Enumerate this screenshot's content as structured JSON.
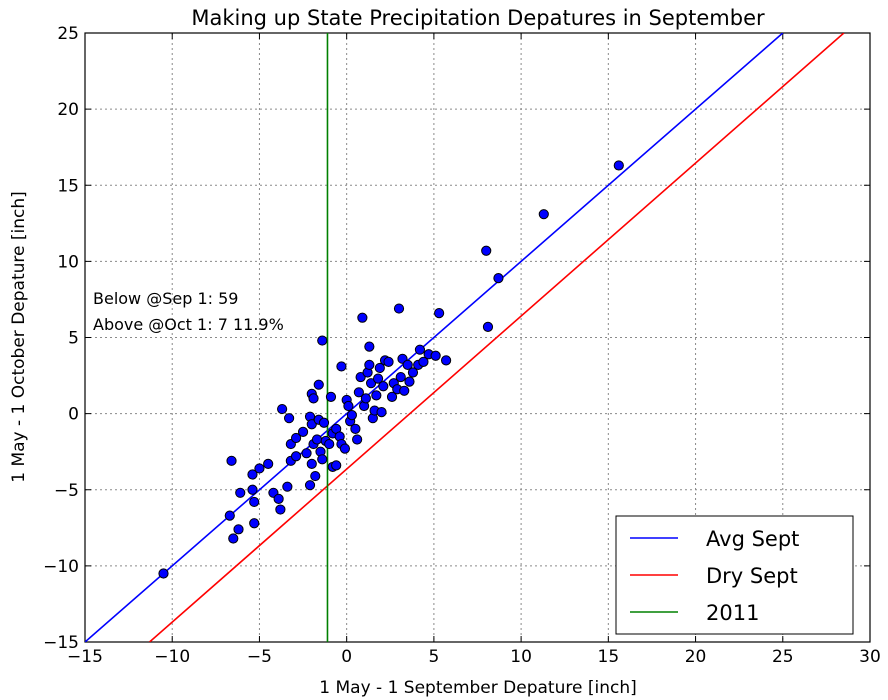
{
  "chart_data": {
    "type": "scatter",
    "title": "Making up State Precipitation Depatures in September",
    "xlabel": "1 May - 1 September Depature [inch]",
    "ylabel": "1 May - 1 October Depature [inch]",
    "xlim": [
      -15,
      30
    ],
    "ylim": [
      -15,
      25
    ],
    "xticks": [
      -15,
      -10,
      -5,
      0,
      5,
      10,
      15,
      20,
      25,
      30
    ],
    "yticks": [
      -15,
      -10,
      -5,
      0,
      5,
      10,
      15,
      20,
      25
    ],
    "x_tick_labels": [
      "−15",
      "−10",
      "−5",
      "0",
      "5",
      "10",
      "15",
      "20",
      "25",
      "30"
    ],
    "y_tick_labels": [
      "−15",
      "−10",
      "−5",
      "0",
      "5",
      "10",
      "15",
      "20",
      "25"
    ],
    "grid": true,
    "legend_position": "bottom-right",
    "annotations": [
      "Below @Sep 1: 59",
      "Above @Oct 1: 7 11.9%"
    ],
    "lines": [
      {
        "name": "Avg Sept",
        "color": "#0000ff",
        "kind": "line",
        "x": [
          -15,
          25
        ],
        "y": [
          -15,
          25
        ]
      },
      {
        "name": "Dry Sept",
        "color": "#ff0000",
        "kind": "line",
        "x": [
          -11.3,
          28.5
        ],
        "y": [
          -15,
          25
        ]
      },
      {
        "name": "2011",
        "color": "#008000",
        "kind": "vline",
        "x": -1.1
      }
    ],
    "points_color": "#0000ff",
    "points": [
      [
        -10.5,
        -10.5
      ],
      [
        -6.5,
        -8.2
      ],
      [
        -6.7,
        -6.7
      ],
      [
        -6.2,
        -7.6
      ],
      [
        -6.6,
        -3.1
      ],
      [
        -6.1,
        -5.2
      ],
      [
        -5.4,
        -5.0
      ],
      [
        -5.3,
        -5.8
      ],
      [
        -5.0,
        -3.6
      ],
      [
        -5.4,
        -4.0
      ],
      [
        -5.3,
        -7.2
      ],
      [
        -4.5,
        -3.3
      ],
      [
        -4.2,
        -5.2
      ],
      [
        -3.9,
        -5.6
      ],
      [
        -3.8,
        -6.3
      ],
      [
        -3.4,
        -4.8
      ],
      [
        -3.2,
        -3.1
      ],
      [
        -2.9,
        -2.8
      ],
      [
        -3.7,
        0.3
      ],
      [
        -3.3,
        -0.3
      ],
      [
        -3.2,
        -2.0
      ],
      [
        -2.9,
        -1.6
      ],
      [
        -2.5,
        -1.2
      ],
      [
        -2.3,
        -2.6
      ],
      [
        -2.1,
        -0.2
      ],
      [
        -2.0,
        -0.7
      ],
      [
        -2.0,
        -3.3
      ],
      [
        -2.1,
        -4.7
      ],
      [
        -1.8,
        -4.1
      ],
      [
        -1.6,
        -0.4
      ],
      [
        -1.9,
        -2.0
      ],
      [
        -1.7,
        -1.7
      ],
      [
        -1.5,
        -2.5
      ],
      [
        -1.4,
        -3.0
      ],
      [
        -1.3,
        -0.6
      ],
      [
        -1.2,
        -1.8
      ],
      [
        -1.0,
        -2.0
      ],
      [
        -0.8,
        -1.3
      ],
      [
        -2.0,
        1.3
      ],
      [
        -1.9,
        1.0
      ],
      [
        -1.6,
        1.9
      ],
      [
        -1.4,
        4.8
      ],
      [
        -0.9,
        1.1
      ],
      [
        -0.8,
        -3.5
      ],
      [
        -0.6,
        -3.4
      ],
      [
        -0.6,
        -1.0
      ],
      [
        -0.4,
        -1.5
      ],
      [
        -0.3,
        3.1
      ],
      [
        -0.3,
        -2.0
      ],
      [
        -0.1,
        -2.3
      ],
      [
        0.0,
        0.9
      ],
      [
        0.1,
        0.5
      ],
      [
        0.2,
        -0.5
      ],
      [
        0.3,
        -0.1
      ],
      [
        0.5,
        -1.0
      ],
      [
        0.6,
        -1.7
      ],
      [
        0.7,
        1.4
      ],
      [
        0.8,
        2.4
      ],
      [
        0.9,
        6.3
      ],
      [
        1.0,
        0.5
      ],
      [
        1.1,
        1.0
      ],
      [
        1.2,
        2.7
      ],
      [
        1.3,
        4.4
      ],
      [
        1.3,
        3.2
      ],
      [
        1.4,
        2.0
      ],
      [
        1.5,
        -0.3
      ],
      [
        1.6,
        0.2
      ],
      [
        1.7,
        1.2
      ],
      [
        1.8,
        2.3
      ],
      [
        1.9,
        3.0
      ],
      [
        2.0,
        0.1
      ],
      [
        2.1,
        1.8
      ],
      [
        2.2,
        3.5
      ],
      [
        2.4,
        3.4
      ],
      [
        2.6,
        1.1
      ],
      [
        2.7,
        2.0
      ],
      [
        2.9,
        1.6
      ],
      [
        3.0,
        6.9
      ],
      [
        3.1,
        2.4
      ],
      [
        3.2,
        3.6
      ],
      [
        3.3,
        1.5
      ],
      [
        3.5,
        3.2
      ],
      [
        3.6,
        2.1
      ],
      [
        3.8,
        2.7
      ],
      [
        4.1,
        3.2
      ],
      [
        4.2,
        4.2
      ],
      [
        4.4,
        3.4
      ],
      [
        4.7,
        3.9
      ],
      [
        5.1,
        3.8
      ],
      [
        5.3,
        6.6
      ],
      [
        5.7,
        3.5
      ],
      [
        8.0,
        10.7
      ],
      [
        8.1,
        5.7
      ],
      [
        8.7,
        8.9
      ],
      [
        11.3,
        13.1
      ],
      [
        15.6,
        16.3
      ]
    ]
  }
}
